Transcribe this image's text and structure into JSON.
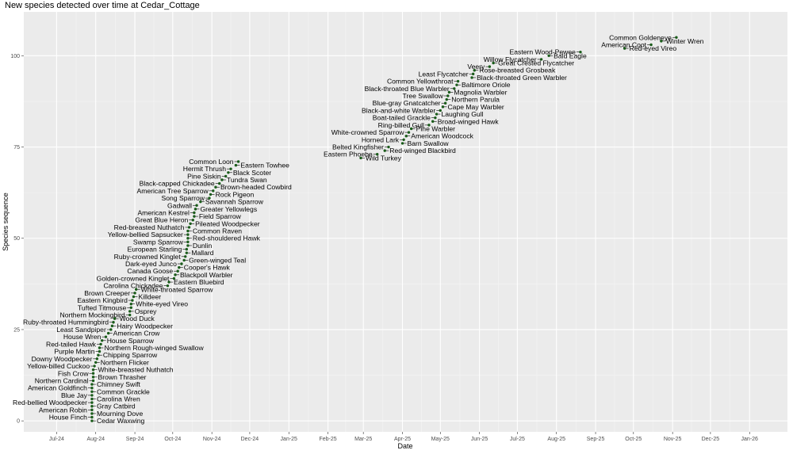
{
  "chart_data": {
    "type": "scatter",
    "title": "New species detected over time at Cedar_Cottage",
    "xlabel": "Date",
    "ylabel": "Species sequence",
    "xlim": [
      "2024-06-05",
      "2026-01-31"
    ],
    "ylim": [
      -3,
      112
    ],
    "x_ticks": [
      {
        "date": "2024-07-01",
        "label": "Jul-24"
      },
      {
        "date": "2024-08-01",
        "label": "Aug-24"
      },
      {
        "date": "2024-09-01",
        "label": "Sep-24"
      },
      {
        "date": "2024-10-01",
        "label": "Oct-24"
      },
      {
        "date": "2024-11-01",
        "label": "Nov-24"
      },
      {
        "date": "2024-12-01",
        "label": "Dec-24"
      },
      {
        "date": "2025-01-01",
        "label": "Jan-25"
      },
      {
        "date": "2025-02-01",
        "label": "Feb-25"
      },
      {
        "date": "2025-03-01",
        "label": "Mar-25"
      },
      {
        "date": "2025-04-01",
        "label": "Apr-25"
      },
      {
        "date": "2025-05-01",
        "label": "May-25"
      },
      {
        "date": "2025-06-01",
        "label": "Jun-25"
      },
      {
        "date": "2025-07-01",
        "label": "Jul-25"
      },
      {
        "date": "2025-08-01",
        "label": "Aug-25"
      },
      {
        "date": "2025-09-01",
        "label": "Sep-25"
      },
      {
        "date": "2025-10-01",
        "label": "Oct-25"
      },
      {
        "date": "2025-11-01",
        "label": "Nov-25"
      },
      {
        "date": "2025-12-01",
        "label": "Dec-25"
      },
      {
        "date": "2026-01-01",
        "label": "Jan-26"
      }
    ],
    "y_ticks": [
      {
        "value": 0,
        "label": "0"
      },
      {
        "value": 25,
        "label": "25"
      },
      {
        "value": 50,
        "label": "50"
      },
      {
        "value": 75,
        "label": "75"
      },
      {
        "value": 100,
        "label": "100"
      }
    ],
    "points": [
      {
        "date": "2024-07-29",
        "seq": 0,
        "species": "Cedar Waxwing"
      },
      {
        "date": "2024-07-29",
        "seq": 1,
        "species": "House Finch"
      },
      {
        "date": "2024-07-29",
        "seq": 2,
        "species": "Mourning Dove"
      },
      {
        "date": "2024-07-29",
        "seq": 3,
        "species": "American Robin"
      },
      {
        "date": "2024-07-29",
        "seq": 4,
        "species": "Gray Catbird"
      },
      {
        "date": "2024-07-29",
        "seq": 5,
        "species": "Red-bellied Woodpecker"
      },
      {
        "date": "2024-07-29",
        "seq": 6,
        "species": "Carolina Wren"
      },
      {
        "date": "2024-07-29",
        "seq": 7,
        "species": "Blue Jay"
      },
      {
        "date": "2024-07-29",
        "seq": 8,
        "species": "Common Grackle"
      },
      {
        "date": "2024-07-29",
        "seq": 9,
        "species": "American Goldfinch"
      },
      {
        "date": "2024-07-29",
        "seq": 10,
        "species": "Chimney Swift"
      },
      {
        "date": "2024-07-30",
        "seq": 11,
        "species": "Northern Cardinal"
      },
      {
        "date": "2024-07-30",
        "seq": 12,
        "species": "Brown Thrasher"
      },
      {
        "date": "2024-07-30",
        "seq": 13,
        "species": "Fish Crow"
      },
      {
        "date": "2024-07-30",
        "seq": 14,
        "species": "White-breasted Nuthatch"
      },
      {
        "date": "2024-07-31",
        "seq": 15,
        "species": "Yellow-billed Cuckoo"
      },
      {
        "date": "2024-08-01",
        "seq": 16,
        "species": "Northern Flicker"
      },
      {
        "date": "2024-08-02",
        "seq": 17,
        "species": "Downy Woodpecker"
      },
      {
        "date": "2024-08-03",
        "seq": 18,
        "species": "Chipping Sparrow"
      },
      {
        "date": "2024-08-04",
        "seq": 19,
        "species": "Purple Martin"
      },
      {
        "date": "2024-08-04",
        "seq": 20,
        "species": "Northern Rough-winged Swallow"
      },
      {
        "date": "2024-08-05",
        "seq": 21,
        "species": "Red-tailed Hawk"
      },
      {
        "date": "2024-08-06",
        "seq": 22,
        "species": "House Sparrow"
      },
      {
        "date": "2024-08-09",
        "seq": 23,
        "species": "House Wren"
      },
      {
        "date": "2024-08-11",
        "seq": 24,
        "species": "American Crow"
      },
      {
        "date": "2024-08-13",
        "seq": 25,
        "species": "Least Sandpiper"
      },
      {
        "date": "2024-08-14",
        "seq": 26,
        "species": "Hairy Woodpecker"
      },
      {
        "date": "2024-08-15",
        "seq": 27,
        "species": "Ruby-throated Hummingbird"
      },
      {
        "date": "2024-08-16",
        "seq": 28,
        "species": "Wood Duck"
      },
      {
        "date": "2024-08-28",
        "seq": 29,
        "species": "Northern Mockingbird"
      },
      {
        "date": "2024-08-28",
        "seq": 30,
        "species": "Osprey"
      },
      {
        "date": "2024-08-29",
        "seq": 31,
        "species": "Tufted Titmouse"
      },
      {
        "date": "2024-08-29",
        "seq": 32,
        "species": "White-eyed Vireo"
      },
      {
        "date": "2024-08-30",
        "seq": 33,
        "species": "Eastern Kingbird"
      },
      {
        "date": "2024-08-31",
        "seq": 34,
        "species": "Killdeer"
      },
      {
        "date": "2024-09-01",
        "seq": 35,
        "species": "Brown Creeper"
      },
      {
        "date": "2024-09-02",
        "seq": 36,
        "species": "White-throated Sparrow"
      },
      {
        "date": "2024-09-27",
        "seq": 37,
        "species": "Carolina Chickadee"
      },
      {
        "date": "2024-09-28",
        "seq": 38,
        "species": "Eastern Bluebird"
      },
      {
        "date": "2024-10-02",
        "seq": 39,
        "species": "Golden-crowned Kinglet"
      },
      {
        "date": "2024-10-03",
        "seq": 40,
        "species": "Blackpoll Warbler"
      },
      {
        "date": "2024-10-05",
        "seq": 41,
        "species": "Canada Goose"
      },
      {
        "date": "2024-10-06",
        "seq": 42,
        "species": "Cooper's Hawk"
      },
      {
        "date": "2024-10-08",
        "seq": 43,
        "species": "Dark-eyed Junco"
      },
      {
        "date": "2024-10-10",
        "seq": 44,
        "species": "Green-winged Teal"
      },
      {
        "date": "2024-10-11",
        "seq": 45,
        "species": "Ruby-crowned Kinglet"
      },
      {
        "date": "2024-10-12",
        "seq": 46,
        "species": "Mallard"
      },
      {
        "date": "2024-10-12",
        "seq": 47,
        "species": "European Starling"
      },
      {
        "date": "2024-10-13",
        "seq": 48,
        "species": "Dunlin"
      },
      {
        "date": "2024-10-13",
        "seq": 49,
        "species": "Swamp Sparrow"
      },
      {
        "date": "2024-10-13",
        "seq": 50,
        "species": "Red-shouldered Hawk"
      },
      {
        "date": "2024-10-13",
        "seq": 51,
        "species": "Yellow-bellied Sapsucker"
      },
      {
        "date": "2024-10-13",
        "seq": 52,
        "species": "Common Raven"
      },
      {
        "date": "2024-10-14",
        "seq": 53,
        "species": "Red-breasted Nuthatch"
      },
      {
        "date": "2024-10-15",
        "seq": 54,
        "species": "Pileated Woodpecker"
      },
      {
        "date": "2024-10-17",
        "seq": 55,
        "species": "Great Blue Heron"
      },
      {
        "date": "2024-10-18",
        "seq": 56,
        "species": "Field Sparrow"
      },
      {
        "date": "2024-10-18",
        "seq": 57,
        "species": "American Kestrel"
      },
      {
        "date": "2024-10-19",
        "seq": 58,
        "species": "Greater Yellowlegs"
      },
      {
        "date": "2024-10-20",
        "seq": 59,
        "species": "Gadwall"
      },
      {
        "date": "2024-10-23",
        "seq": 60,
        "species": "Savannah Sparrow"
      },
      {
        "date": "2024-10-30",
        "seq": 61,
        "species": "Song Sparrow"
      },
      {
        "date": "2024-10-31",
        "seq": 62,
        "species": "Rock Pigeon"
      },
      {
        "date": "2024-11-02",
        "seq": 63,
        "species": "American Tree Sparrow"
      },
      {
        "date": "2024-11-04",
        "seq": 64,
        "species": "Brown-headed Cowbird"
      },
      {
        "date": "2024-11-07",
        "seq": 65,
        "species": "Black-capped Chickadee"
      },
      {
        "date": "2024-11-09",
        "seq": 66,
        "species": "Tundra Swan"
      },
      {
        "date": "2024-11-12",
        "seq": 67,
        "species": "Pine Siskin"
      },
      {
        "date": "2024-11-14",
        "seq": 68,
        "species": "Black Scoter"
      },
      {
        "date": "2024-11-16",
        "seq": 69,
        "species": "Hermit Thrush"
      },
      {
        "date": "2024-11-20",
        "seq": 70,
        "species": "Eastern Towhee"
      },
      {
        "date": "2024-11-22",
        "seq": 71,
        "species": "Common Loon"
      },
      {
        "date": "2025-02-27",
        "seq": 72,
        "species": "Wild Turkey"
      },
      {
        "date": "2025-03-12",
        "seq": 73,
        "species": "Eastern Phoebe"
      },
      {
        "date": "2025-03-18",
        "seq": 74,
        "species": "Red-winged Blackbird"
      },
      {
        "date": "2025-03-21",
        "seq": 75,
        "species": "Belted Kingfisher"
      },
      {
        "date": "2025-04-01",
        "seq": 76,
        "species": "Barn Swallow"
      },
      {
        "date": "2025-04-02",
        "seq": 77,
        "species": "Horned Lark"
      },
      {
        "date": "2025-04-04",
        "seq": 78,
        "species": "American Woodcock"
      },
      {
        "date": "2025-04-06",
        "seq": 79,
        "species": "White-crowned Sparrow"
      },
      {
        "date": "2025-04-08",
        "seq": 80,
        "species": "Pine Warbler"
      },
      {
        "date": "2025-04-22",
        "seq": 81,
        "species": "Ring-billed Gull"
      },
      {
        "date": "2025-04-25",
        "seq": 82,
        "species": "Broad-winged Hawk"
      },
      {
        "date": "2025-04-27",
        "seq": 83,
        "species": "Boat-tailed Grackle"
      },
      {
        "date": "2025-04-28",
        "seq": 84,
        "species": "Laughing Gull"
      },
      {
        "date": "2025-05-01",
        "seq": 85,
        "species": "Black-and-white Warbler"
      },
      {
        "date": "2025-05-03",
        "seq": 86,
        "species": "Cape May Warbler"
      },
      {
        "date": "2025-05-05",
        "seq": 87,
        "species": "Blue-gray Gnatcatcher"
      },
      {
        "date": "2025-05-06",
        "seq": 88,
        "species": "Northern Parula"
      },
      {
        "date": "2025-05-07",
        "seq": 89,
        "species": "Tree Swallow"
      },
      {
        "date": "2025-05-08",
        "seq": 90,
        "species": "Magnolia Warbler"
      },
      {
        "date": "2025-05-12",
        "seq": 91,
        "species": "Black-throated Blue Warbler"
      },
      {
        "date": "2025-05-14",
        "seq": 92,
        "species": "Baltimore Oriole"
      },
      {
        "date": "2025-05-15",
        "seq": 93,
        "species": "Common Yellowthroat"
      },
      {
        "date": "2025-05-26",
        "seq": 94,
        "species": "Black-throated Green Warbler"
      },
      {
        "date": "2025-05-27",
        "seq": 95,
        "species": "Least Flycatcher"
      },
      {
        "date": "2025-05-28",
        "seq": 96,
        "species": "Rose-breasted Grosbeak"
      },
      {
        "date": "2025-06-09",
        "seq": 97,
        "species": "Veery"
      },
      {
        "date": "2025-06-12",
        "seq": 98,
        "species": "Great Crested Flycatcher"
      },
      {
        "date": "2025-07-20",
        "seq": 99,
        "species": "Willow Flycatcher"
      },
      {
        "date": "2025-07-26",
        "seq": 100,
        "species": "Bald Eagle"
      },
      {
        "date": "2025-08-20",
        "seq": 101,
        "species": "Eastern Wood-Pewee"
      },
      {
        "date": "2025-09-24",
        "seq": 102,
        "species": "Red-eyed Vireo"
      },
      {
        "date": "2025-10-15",
        "seq": 103,
        "species": "American Coot"
      },
      {
        "date": "2025-10-23",
        "seq": 104,
        "species": "Winter Wren"
      },
      {
        "date": "2025-11-04",
        "seq": 105,
        "species": "Common Goldeneye"
      }
    ]
  }
}
